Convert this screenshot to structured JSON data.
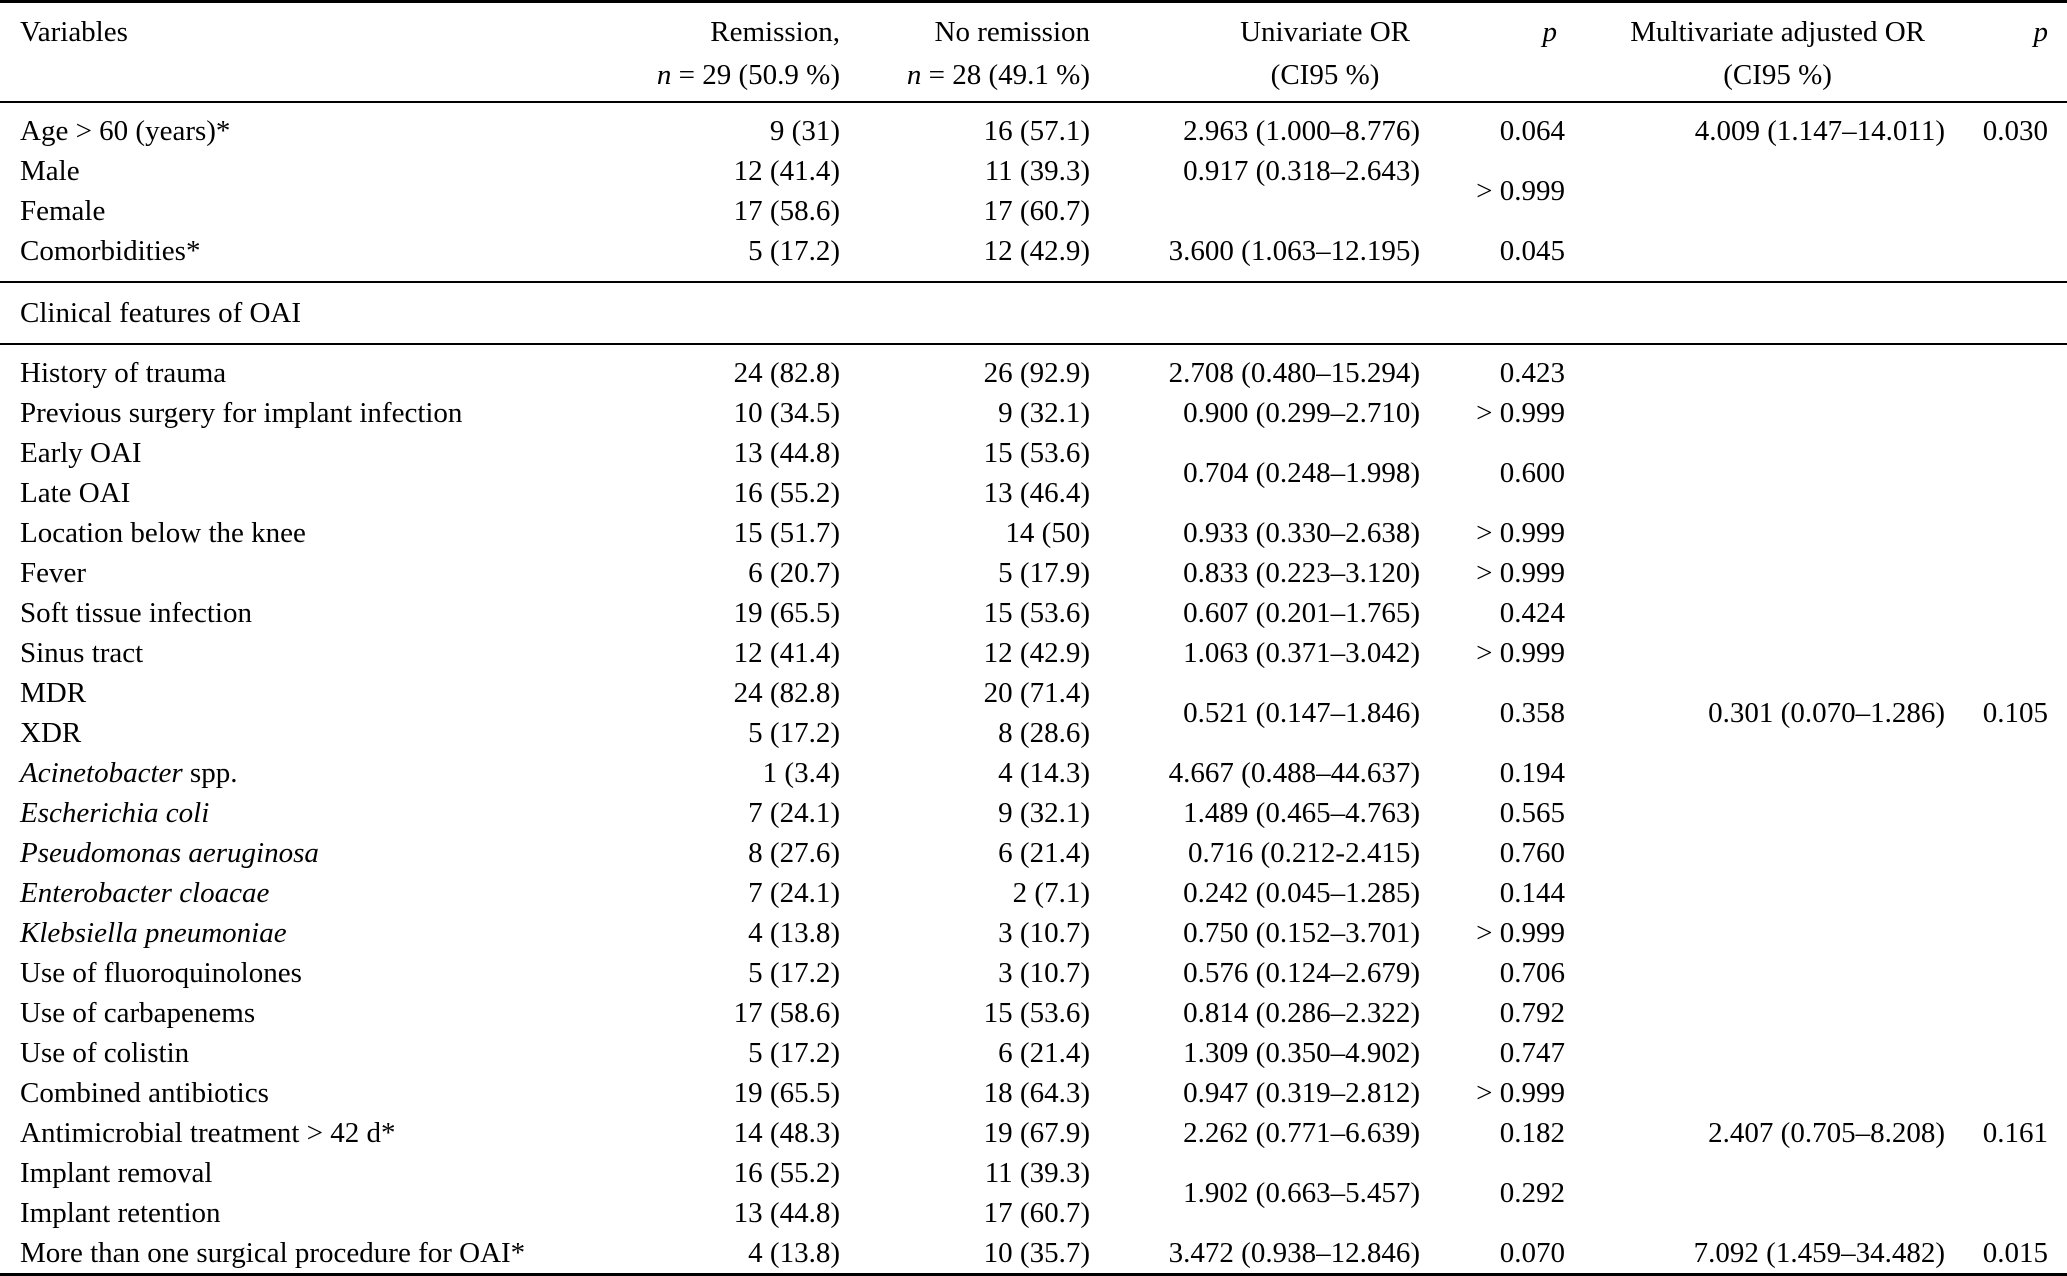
{
  "page": {
    "background": "#ffffff",
    "text_color": "#000000"
  },
  "table": {
    "header": {
      "variables": "Variables",
      "remission": {
        "line1": "Remission,",
        "n": "n",
        "rest": " = 29 (50.9 %)"
      },
      "no_remission": {
        "line1": "No remission",
        "n": "n",
        "rest": " = 28 (49.1 %)"
      },
      "univariate": {
        "line1": "Univariate OR",
        "line2": "(CI95 %)"
      },
      "p1": "p",
      "multivariate": {
        "line1": "Multivariate adjusted OR",
        "line2": "(CI95 %)"
      },
      "p2": "p"
    },
    "rows": [
      {
        "cells": [
          {
            "c": "var",
            "t": "Age > 60 (years)*"
          },
          {
            "c": "rem",
            "t": "9 (31)"
          },
          {
            "c": "norem",
            "t": "16 (57.1)"
          },
          {
            "c": "uni",
            "t": "2.963 (1.000–8.776)"
          },
          {
            "c": "p1",
            "t": "0.064"
          },
          {
            "c": "multi",
            "t": "4.009 (1.147–14.011)"
          },
          {
            "c": "p2",
            "t": "0.030"
          }
        ]
      },
      {
        "cells": [
          {
            "c": "var",
            "t": "Male"
          },
          {
            "c": "rem",
            "t": "12 (41.4)"
          },
          {
            "c": "norem",
            "t": "11 (39.3)"
          },
          {
            "c": "uni",
            "t": "0.917 (0.318–2.643)"
          },
          {
            "c": "p1",
            "t": "> 0.999",
            "rs": 2
          },
          {
            "c": "multi",
            "t": ""
          },
          {
            "c": "p2",
            "t": ""
          }
        ]
      },
      {
        "cells": [
          {
            "c": "var",
            "t": "Female"
          },
          {
            "c": "rem",
            "t": "17 (58.6)"
          },
          {
            "c": "norem",
            "t": "17 (60.7)"
          },
          {
            "c": "uni",
            "t": ""
          },
          {
            "c": "multi",
            "t": ""
          },
          {
            "c": "p2",
            "t": ""
          }
        ]
      },
      {
        "cells": [
          {
            "c": "var",
            "t": "Comorbidities*"
          },
          {
            "c": "rem",
            "t": "5 (17.2)"
          },
          {
            "c": "norem",
            "t": "12 (42.9)"
          },
          {
            "c": "uni",
            "t": "3.600 (1.063–12.195)"
          },
          {
            "c": "p1",
            "t": "0.045"
          },
          {
            "c": "multi",
            "t": ""
          },
          {
            "c": "p2",
            "t": ""
          }
        ]
      },
      {
        "section": "Clinical features of OAI"
      },
      {
        "cells": [
          {
            "c": "var",
            "t": "History of trauma"
          },
          {
            "c": "rem",
            "t": "24 (82.8)"
          },
          {
            "c": "norem",
            "t": "26 (92.9)"
          },
          {
            "c": "uni",
            "t": "2.708 (0.480–15.294)"
          },
          {
            "c": "p1",
            "t": "0.423"
          },
          {
            "c": "multi",
            "t": ""
          },
          {
            "c": "p2",
            "t": ""
          }
        ]
      },
      {
        "cells": [
          {
            "c": "var",
            "t": "Previous surgery for implant infection"
          },
          {
            "c": "rem",
            "t": "10 (34.5)"
          },
          {
            "c": "norem",
            "t": "9 (32.1)"
          },
          {
            "c": "uni",
            "t": "0.900 (0.299–2.710)"
          },
          {
            "c": "p1",
            "t": "> 0.999"
          },
          {
            "c": "multi",
            "t": ""
          },
          {
            "c": "p2",
            "t": ""
          }
        ]
      },
      {
        "cells": [
          {
            "c": "var",
            "t": "Early OAI"
          },
          {
            "c": "rem",
            "t": "13 (44.8)"
          },
          {
            "c": "norem",
            "t": "15 (53.6)"
          },
          {
            "c": "uni",
            "t": "0.704 (0.248–1.998)",
            "rs": 2
          },
          {
            "c": "p1",
            "t": "0.600",
            "rs": 2
          },
          {
            "c": "multi",
            "t": ""
          },
          {
            "c": "p2",
            "t": ""
          }
        ]
      },
      {
        "cells": [
          {
            "c": "var",
            "t": "Late OAI"
          },
          {
            "c": "rem",
            "t": "16 (55.2)"
          },
          {
            "c": "norem",
            "t": "13 (46.4)"
          },
          {
            "c": "multi",
            "t": ""
          },
          {
            "c": "p2",
            "t": ""
          }
        ]
      },
      {
        "cells": [
          {
            "c": "var",
            "t": "Location below the knee"
          },
          {
            "c": "rem",
            "t": "15 (51.7)"
          },
          {
            "c": "norem",
            "t": "14 (50)"
          },
          {
            "c": "uni",
            "t": "0.933 (0.330–2.638)"
          },
          {
            "c": "p1",
            "t": "> 0.999"
          },
          {
            "c": "multi",
            "t": ""
          },
          {
            "c": "p2",
            "t": ""
          }
        ]
      },
      {
        "cells": [
          {
            "c": "var",
            "t": "Fever"
          },
          {
            "c": "rem",
            "t": "6 (20.7)"
          },
          {
            "c": "norem",
            "t": "5 (17.9)"
          },
          {
            "c": "uni",
            "t": "0.833 (0.223–3.120)"
          },
          {
            "c": "p1",
            "t": "> 0.999"
          },
          {
            "c": "multi",
            "t": ""
          },
          {
            "c": "p2",
            "t": ""
          }
        ]
      },
      {
        "cells": [
          {
            "c": "var",
            "t": "Soft tissue infection"
          },
          {
            "c": "rem",
            "t": "19 (65.5)"
          },
          {
            "c": "norem",
            "t": "15 (53.6)"
          },
          {
            "c": "uni",
            "t": "0.607 (0.201–1.765)"
          },
          {
            "c": "p1",
            "t": "0.424"
          },
          {
            "c": "multi",
            "t": ""
          },
          {
            "c": "p2",
            "t": ""
          }
        ]
      },
      {
        "cells": [
          {
            "c": "var",
            "t": "Sinus tract"
          },
          {
            "c": "rem",
            "t": "12 (41.4)"
          },
          {
            "c": "norem",
            "t": "12 (42.9)"
          },
          {
            "c": "uni",
            "t": "1.063 (0.371–3.042)"
          },
          {
            "c": "p1",
            "t": "> 0.999"
          },
          {
            "c": "multi",
            "t": ""
          },
          {
            "c": "p2",
            "t": ""
          }
        ]
      },
      {
        "cells": [
          {
            "c": "var",
            "t": "MDR"
          },
          {
            "c": "rem",
            "t": "24 (82.8)"
          },
          {
            "c": "norem",
            "t": "20 (71.4)"
          },
          {
            "c": "uni",
            "t": "0.521 (0.147–1.846)",
            "rs": 2
          },
          {
            "c": "p1",
            "t": "0.358",
            "rs": 2
          },
          {
            "c": "multi",
            "t": "0.301 (0.070–1.286)",
            "rs": 2
          },
          {
            "c": "p2",
            "t": "0.105",
            "rs": 2
          }
        ]
      },
      {
        "cells": [
          {
            "c": "var",
            "t": "XDR"
          },
          {
            "c": "rem",
            "t": "5 (17.2)"
          },
          {
            "c": "norem",
            "t": "8 (28.6)"
          }
        ]
      },
      {
        "cells": [
          {
            "c": "var",
            "parts": [
              {
                "t": "Acinetobacter",
                "it": true
              },
              {
                "t": " spp.",
                "it": false
              }
            ]
          },
          {
            "c": "rem",
            "t": "1 (3.4)"
          },
          {
            "c": "norem",
            "t": "4 (14.3)"
          },
          {
            "c": "uni",
            "t": "4.667 (0.488–44.637)"
          },
          {
            "c": "p1",
            "t": "0.194"
          },
          {
            "c": "multi",
            "t": ""
          },
          {
            "c": "p2",
            "t": ""
          }
        ]
      },
      {
        "cells": [
          {
            "c": "var",
            "t": "Escherichia coli",
            "it": true
          },
          {
            "c": "rem",
            "t": "7 (24.1)"
          },
          {
            "c": "norem",
            "t": "9 (32.1)"
          },
          {
            "c": "uni",
            "t": "1.489 (0.465–4.763)"
          },
          {
            "c": "p1",
            "t": "0.565"
          },
          {
            "c": "multi",
            "t": ""
          },
          {
            "c": "p2",
            "t": ""
          }
        ]
      },
      {
        "cells": [
          {
            "c": "var",
            "t": "Pseudomonas aeruginosa",
            "it": true
          },
          {
            "c": "rem",
            "t": "8 (27.6)"
          },
          {
            "c": "norem",
            "t": "6 (21.4)"
          },
          {
            "c": "uni",
            "t": "0.716 (0.212-2.415)"
          },
          {
            "c": "p1",
            "t": "0.760"
          },
          {
            "c": "multi",
            "t": ""
          },
          {
            "c": "p2",
            "t": ""
          }
        ]
      },
      {
        "cells": [
          {
            "c": "var",
            "t": "Enterobacter cloacae",
            "it": true
          },
          {
            "c": "rem",
            "t": "7 (24.1)"
          },
          {
            "c": "norem",
            "t": "2 (7.1)"
          },
          {
            "c": "uni",
            "t": "0.242 (0.045–1.285)"
          },
          {
            "c": "p1",
            "t": "0.144"
          },
          {
            "c": "multi",
            "t": ""
          },
          {
            "c": "p2",
            "t": ""
          }
        ]
      },
      {
        "cells": [
          {
            "c": "var",
            "t": "Klebsiella pneumoniae",
            "it": true
          },
          {
            "c": "rem",
            "t": "4 (13.8)"
          },
          {
            "c": "norem",
            "t": "3 (10.7)"
          },
          {
            "c": "uni",
            "t": "0.750 (0.152–3.701)"
          },
          {
            "c": "p1",
            "t": "> 0.999"
          },
          {
            "c": "multi",
            "t": ""
          },
          {
            "c": "p2",
            "t": ""
          }
        ]
      },
      {
        "cells": [
          {
            "c": "var",
            "t": "Use of fluoroquinolones"
          },
          {
            "c": "rem",
            "t": "5 (17.2)"
          },
          {
            "c": "norem",
            "t": "3 (10.7)"
          },
          {
            "c": "uni",
            "t": "0.576 (0.124–2.679)"
          },
          {
            "c": "p1",
            "t": "0.706"
          },
          {
            "c": "multi",
            "t": ""
          },
          {
            "c": "p2",
            "t": ""
          }
        ]
      },
      {
        "cells": [
          {
            "c": "var",
            "t": "Use of carbapenems"
          },
          {
            "c": "rem",
            "t": "17 (58.6)"
          },
          {
            "c": "norem",
            "t": "15 (53.6)"
          },
          {
            "c": "uni",
            "t": "0.814 (0.286–2.322)"
          },
          {
            "c": "p1",
            "t": "0.792"
          },
          {
            "c": "multi",
            "t": ""
          },
          {
            "c": "p2",
            "t": ""
          }
        ]
      },
      {
        "cells": [
          {
            "c": "var",
            "t": "Use of colistin"
          },
          {
            "c": "rem",
            "t": "5 (17.2)"
          },
          {
            "c": "norem",
            "t": "6 (21.4)"
          },
          {
            "c": "uni",
            "t": "1.309 (0.350–4.902)"
          },
          {
            "c": "p1",
            "t": "0.747"
          },
          {
            "c": "multi",
            "t": ""
          },
          {
            "c": "p2",
            "t": ""
          }
        ]
      },
      {
        "cells": [
          {
            "c": "var",
            "t": "Combined antibiotics"
          },
          {
            "c": "rem",
            "t": "19 (65.5)"
          },
          {
            "c": "norem",
            "t": "18 (64.3)"
          },
          {
            "c": "uni",
            "t": "0.947 (0.319–2.812)"
          },
          {
            "c": "p1",
            "t": "> 0.999"
          },
          {
            "c": "multi",
            "t": ""
          },
          {
            "c": "p2",
            "t": ""
          }
        ]
      },
      {
        "cells": [
          {
            "c": "var",
            "t": "Antimicrobial treatment > 42 d*"
          },
          {
            "c": "rem",
            "t": "14 (48.3)"
          },
          {
            "c": "norem",
            "t": "19 (67.9)"
          },
          {
            "c": "uni",
            "t": "2.262 (0.771–6.639)"
          },
          {
            "c": "p1",
            "t": "0.182"
          },
          {
            "c": "multi",
            "t": "2.407 (0.705–8.208)"
          },
          {
            "c": "p2",
            "t": "0.161"
          }
        ]
      },
      {
        "cells": [
          {
            "c": "var",
            "t": "Implant removal"
          },
          {
            "c": "rem",
            "t": "16 (55.2)"
          },
          {
            "c": "norem",
            "t": "11 (39.3)"
          },
          {
            "c": "uni",
            "t": "1.902 (0.663–5.457)",
            "rs": 2
          },
          {
            "c": "p1",
            "t": "0.292",
            "rs": 2
          },
          {
            "c": "multi",
            "t": ""
          },
          {
            "c": "p2",
            "t": ""
          }
        ]
      },
      {
        "cells": [
          {
            "c": "var",
            "t": "Implant retention"
          },
          {
            "c": "rem",
            "t": "13 (44.8)"
          },
          {
            "c": "norem",
            "t": "17 (60.7)"
          },
          {
            "c": "multi",
            "t": ""
          },
          {
            "c": "p2",
            "t": ""
          }
        ]
      },
      {
        "cells": [
          {
            "c": "var",
            "t": "More than one surgical procedure for OAI*"
          },
          {
            "c": "rem",
            "t": "4 (13.8)"
          },
          {
            "c": "norem",
            "t": "10 (35.7)"
          },
          {
            "c": "uni",
            "t": "3.472 (0.938–12.846)"
          },
          {
            "c": "p1",
            "t": "0.070"
          },
          {
            "c": "multi",
            "t": "7.092 (1.459–34.482)"
          },
          {
            "c": "p2",
            "t": "0.015"
          }
        ]
      }
    ]
  }
}
